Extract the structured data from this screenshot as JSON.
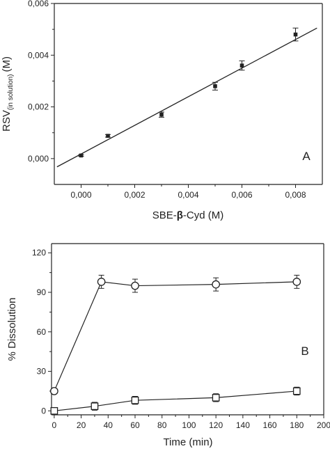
{
  "chart_data": [
    {
      "type": "scatter",
      "panel_label": "A",
      "xlabel": "SBE-β-Cyd (M)",
      "xlabel_parts": {
        "pre": "SBE-",
        "beta": "β",
        "post": "-Cyd (M)"
      },
      "ylabel": "RSV(in solution) (M)",
      "ylabel_parts": {
        "main": "RSV",
        "sub": "(in solution)",
        "unit": "(M)"
      },
      "xlim": [
        -0.001,
        0.009
      ],
      "ylim": [
        -0.001,
        0.006
      ],
      "x_tick_values": [
        0,
        0.002,
        0.004,
        0.006,
        0.008
      ],
      "x_tick_labels": [
        "0,000",
        "0,002",
        "0,004",
        "0,006",
        "0,008"
      ],
      "y_tick_values": [
        0,
        0.002,
        0.004,
        0.006
      ],
      "y_tick_labels": [
        "0,000",
        "0,002",
        "0,004",
        "0,006"
      ],
      "grid": false,
      "series": [
        {
          "marker": "filled-square",
          "x": [
            0,
            0.001,
            0.003,
            0.005,
            0.006,
            0.008
          ],
          "y": [
            0.00012,
            0.00088,
            0.0017,
            0.0028,
            0.0036,
            0.0048
          ],
          "err": [
            3e-05,
            5e-05,
            0.0001,
            0.00015,
            0.00018,
            0.00025
          ]
        }
      ],
      "fit_line": {
        "x": [
          -0.0009,
          0.0088
        ],
        "y": [
          -0.00032,
          0.00505
        ]
      }
    },
    {
      "type": "line",
      "panel_label": "B",
      "xlabel": "Time (min)",
      "ylabel": "% Dissolution",
      "xlim": [
        -2,
        200
      ],
      "ylim": [
        -3,
        127
      ],
      "x_tick_values": [
        0,
        20,
        40,
        60,
        80,
        100,
        120,
        140,
        160,
        180,
        200
      ],
      "x_tick_labels": [
        "0",
        "20",
        "40",
        "60",
        "80",
        "100",
        "120",
        "140",
        "160",
        "180",
        "200"
      ],
      "y_tick_values": [
        0,
        30,
        60,
        90,
        120
      ],
      "y_tick_labels": [
        "0",
        "30",
        "60",
        "90",
        "120"
      ],
      "grid": false,
      "series": [
        {
          "marker": "open-circle",
          "x": [
            0,
            35,
            60,
            120,
            180
          ],
          "y": [
            15,
            98,
            95,
            96,
            98
          ],
          "err": [
            1,
            5,
            5,
            5,
            5
          ]
        },
        {
          "marker": "open-square",
          "x": [
            0,
            30,
            60,
            120,
            180
          ],
          "y": [
            0,
            3.5,
            8,
            10,
            15
          ],
          "err": [
            0.5,
            3,
            3,
            3,
            3
          ]
        }
      ]
    }
  ]
}
